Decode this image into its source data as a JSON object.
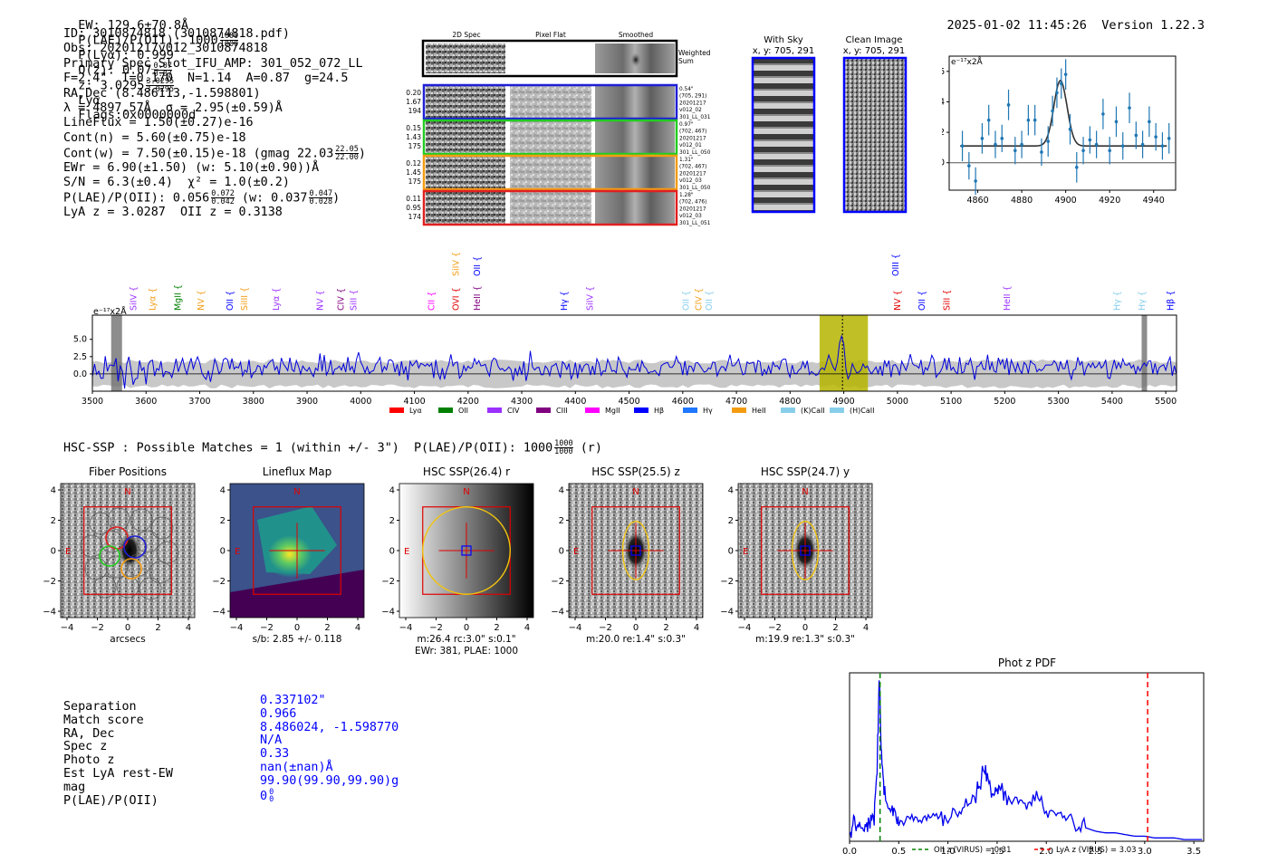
{
  "header": {
    "ew_text": "EW: 129.6±70.8Å",
    "plae_text": "P(LAE)/P(OII): 1000",
    "plae_hi": "1000",
    "plae_lo": "1000",
    "plya_text": "P(Lyα): 0.999",
    "qz_text": "Q(z): 0.07",
    "qz_hi": "0.07",
    "qz_lo": "0.07",
    "z_text": "z: 3.0295",
    "z_hi": "3.0295",
    "z_lo": "3.0295",
    "lya_text": "Lyα",
    "flags_text": "Flags:0x0000000d",
    "timestamp": "2025-01-02 11:45:26",
    "version": "Version 1.22.3"
  },
  "info": {
    "id": "ID: 3010874818 (3010874818.pdf)",
    "obs": "Obs: 20201217v012_3010874818",
    "primary": "Primary Spec_Slot_IFU_AMP: 301_052_072_LL",
    "fwhm": "F=2.4\"  T=0.170  N=1.14  A=0.87  g=24.5",
    "radec": "RA,Dec (8.486113,-1.598801)",
    "lambda": "λ = 4897.57Å  σ = 2.95(±0.59)Å",
    "lineflux": "LineFlux = 1.50(±0.27)e-16",
    "contn": "Cont(n) = 5.60(±0.75)e-18",
    "contw": "Cont(w) = 7.50(±0.15)e-18 (gmag 22.03",
    "contw_hi": "22.05",
    "contw_lo": "22.00",
    "contw_close": ")",
    "ewr": "EWr = 6.90(±1.50) (w: 5.10(±0.90))Å",
    "sn": "S/N = 6.3(±0.4)  χ² = 1.0(±0.2)",
    "plae": "P(LAE)/P(OII): 0.056",
    "plae_hi": "0.072",
    "plae_lo": "0.042",
    "plae_w": "(w: 0.037",
    "plae_w_hi": "0.047",
    "plae_w_lo": "0.028",
    "plae_w_close": ")",
    "lyaz": "LyA z = 3.0287  OII z = 0.3138"
  },
  "cutouts": {
    "col_2d": "2D Spec",
    "col_flat": "Pixel Flat",
    "col_smooth": "Smoothed",
    "weighted_sum": [
      "Weighted",
      "Sum"
    ],
    "rows": [
      {
        "left": [
          "0.20",
          "1.67",
          "194"
        ],
        "right": [
          "0.54\"",
          "(705, 291)",
          "20201217",
          "v012_02",
          "301_LL_031"
        ],
        "color": "#1f1fd6"
      },
      {
        "left": [
          "0.15",
          "1.43",
          "175"
        ],
        "right": [
          "0.97\"",
          "(702, 467)",
          "20201217",
          "v012_01",
          "301_LL_050"
        ],
        "color": "#22cc22"
      },
      {
        "left": [
          "0.12",
          "1.45",
          "175"
        ],
        "right": [
          "1.31\"",
          "(702, 467)",
          "20201217",
          "v012_03",
          "301_LL_050"
        ],
        "color": "#f39c12"
      },
      {
        "left": [
          "0.11",
          "0.95",
          "174"
        ],
        "right": [
          "1.28\"",
          "(702, 476)",
          "20201217",
          "v012_03",
          "301_LL_051"
        ],
        "color": "#e02020"
      }
    ],
    "with_sky": "With Sky",
    "with_sky_xy": "x, y: 705, 291",
    "clean": "Clean Image",
    "clean_xy": "x, y: 705, 291"
  },
  "zoom_plot": {
    "unit": "e⁻¹⁷x2Å",
    "x_ticks": [
      "4860",
      "4880",
      "4900",
      "4920",
      "4940"
    ],
    "y_ticks": [
      "0",
      "2",
      "4",
      "6"
    ]
  },
  "spectrum": {
    "unit": "e⁻¹⁷x2Å",
    "x_ticks": [
      "3500",
      "3600",
      "3700",
      "3800",
      "3900",
      "4000",
      "4100",
      "4200",
      "4300",
      "4400",
      "4500",
      "4600",
      "4700",
      "4800",
      "4900",
      "5000",
      "5100",
      "5200",
      "5300",
      "5400",
      "5500"
    ],
    "y_ticks": [
      "5.0",
      "2.5",
      "0.0"
    ],
    "line_labels": [
      {
        "t": "SiIV",
        "x": 3578,
        "row": 0,
        "c": "#9b30ff"
      },
      {
        "t": "Lyα",
        "x": 3613,
        "row": 0,
        "c": "#f39c12"
      },
      {
        "t": "MgII",
        "x": 3660,
        "row": 0,
        "c": "#008000"
      },
      {
        "t": "NV",
        "x": 3703,
        "row": 0,
        "c": "#f39c12"
      },
      {
        "t": "OII",
        "x": 3757,
        "row": 0,
        "c": "#0000ff"
      },
      {
        "t": "SiIII",
        "x": 3784,
        "row": 0,
        "c": "#f39c12"
      },
      {
        "t": "Lyα",
        "x": 3843,
        "row": 0,
        "c": "#9b30ff"
      },
      {
        "t": "NV",
        "x": 3925,
        "row": 0,
        "c": "#9b30ff"
      },
      {
        "t": "CIV",
        "x": 3964,
        "row": 0,
        "c": "#800080"
      },
      {
        "t": "SiII",
        "x": 3988,
        "row": 0,
        "c": "#9b30ff"
      },
      {
        "t": "CII",
        "x": 4133,
        "row": 0,
        "c": "#ff00ff"
      },
      {
        "t": "OVI",
        "x": 4178,
        "row": 0,
        "c": "#e00000"
      },
      {
        "t": "HeII",
        "x": 4218,
        "row": 0,
        "c": "#800080"
      },
      {
        "t": "SiIV",
        "x": 4178,
        "row": 1,
        "c": "#f39c12"
      },
      {
        "t": "OII",
        "x": 4218,
        "row": 1,
        "c": "#0000ff"
      },
      {
        "t": "Hγ",
        "x": 4380,
        "row": 0,
        "c": "#0000ff"
      },
      {
        "t": "SiIV",
        "x": 4428,
        "row": 0,
        "c": "#9b30ff"
      },
      {
        "t": "OII",
        "x": 4607,
        "row": 0,
        "c": "#87ceeb"
      },
      {
        "t": "CIV",
        "x": 4631,
        "row": 0,
        "c": "#f39c12"
      },
      {
        "t": "OII",
        "x": 4650,
        "row": 0,
        "c": "#87ceeb"
      },
      {
        "t": "NV",
        "x": 5001,
        "row": 0,
        "c": "#e00000"
      },
      {
        "t": "OII",
        "x": 5047,
        "row": 0,
        "c": "#0000ff"
      },
      {
        "t": "SiII",
        "x": 5093,
        "row": 0,
        "c": "#e00000"
      },
      {
        "t": "HeII",
        "x": 5205,
        "row": 0,
        "c": "#9b30ff"
      },
      {
        "t": "OIII",
        "x": 4998,
        "row": 1,
        "c": "#0000ff"
      },
      {
        "t": "Hγ",
        "x": 5410,
        "row": 0,
        "c": "#87ceeb"
      },
      {
        "t": "Hγ",
        "x": 5457,
        "row": 0,
        "c": "#87ceeb"
      },
      {
        "t": "Hβ",
        "x": 5528,
        "row": 0,
        "c": "#0000ff"
      }
    ],
    "legend": [
      {
        "t": "Lyα",
        "c": "#ff0000"
      },
      {
        "t": "OII",
        "c": "#008000"
      },
      {
        "t": "CIV",
        "c": "#9b30ff"
      },
      {
        "t": "CIII",
        "c": "#800080"
      },
      {
        "t": "MgII",
        "c": "#ff00ff"
      },
      {
        "t": "Hβ",
        "c": "#0000ff"
      },
      {
        "t": "Hγ",
        "c": "#1f77ff"
      },
      {
        "t": "HeII",
        "c": "#f39c12"
      },
      {
        "t": "(K)CaII",
        "c": "#87ceeb"
      },
      {
        "t": "(H)CaII",
        "c": "#87ceeb"
      }
    ]
  },
  "hsc": {
    "summary": "HSC-SSP : Possible Matches = 1 (within +/- 3\")  P(LAE)/P(OII): 1000",
    "summary_hi": "1000",
    "summary_lo": "1000",
    "summary_band": "(r)",
    "panels": [
      {
        "title": "Fiber Positions",
        "caption1": "arcsecs",
        "caption2": ""
      },
      {
        "title": "Lineflux Map",
        "caption1": "s/b: 2.85 +/- 0.118",
        "caption2": ""
      },
      {
        "title": "HSC SSP(26.4) r",
        "caption1": "m:26.4 rc:3.0\"  s:0.1\"",
        "caption2": "EWr: 381, PLAE: 1000"
      },
      {
        "title": "HSC SSP(25.5) z",
        "caption1": "m:20.0  re:1.4\"  s:0.3\"",
        "caption2": ""
      },
      {
        "title": "HSC SSP(24.7) y",
        "caption1": "m:19.9  re:1.3\"  s:0.3\"",
        "caption2": ""
      }
    ],
    "y_ticks": [
      "4",
      "2",
      "0",
      "−2",
      "−4"
    ],
    "x_ticks": [
      "−4",
      "−2",
      "0",
      "2",
      "4"
    ],
    "north": "N",
    "east": "E"
  },
  "match": {
    "labels": [
      "Separation",
      "Match score",
      "RA, Dec",
      "Spec z",
      "Photo z",
      "Est LyA rest-EW",
      "mag",
      "P(LAE)/P(OII)"
    ],
    "values": [
      "0.337102\"",
      "0.966",
      "8.486024, -1.598770",
      "N/A",
      "0.33",
      "nan(±nan)Å",
      "99.90(99.90,99.90)g",
      "0"
    ],
    "plae_hi": "0",
    "plae_lo": "0"
  },
  "photz": {
    "title": "Phot z PDF",
    "x_ticks": [
      "0.0",
      "0.5",
      "1.0",
      "1.5",
      "2.0",
      "2.5",
      "3.0",
      "3.5"
    ],
    "legend_oii": "OII z (VIRUS) = 0.31",
    "legend_lya": "LyA z (VIRUS) = 3.03"
  },
  "chart_data": [
    {
      "type": "scatter",
      "title": "",
      "xlabel": "",
      "ylabel": "e-17 x2Å",
      "xlim": [
        4847,
        4950
      ],
      "ylim": [
        -1.8,
        7.0
      ],
      "x": [
        4853,
        4856,
        4859,
        4862,
        4865,
        4868,
        4871,
        4874,
        4877,
        4880,
        4883,
        4886,
        4889,
        4892,
        4894,
        4896,
        4898,
        4900,
        4902,
        4905,
        4908,
        4911,
        4914,
        4917,
        4920,
        4923,
        4926,
        4929,
        4932,
        4935,
        4938,
        4941,
        4944,
        4947
      ],
      "y": [
        1.1,
        -0.2,
        -1.2,
        1.6,
        2.8,
        1.2,
        1.6,
        3.8,
        0.8,
        1.2,
        2.8,
        2.8,
        0.7,
        1.4,
        3.4,
        4.6,
        5.2,
        5.8,
        2.2,
        -0.3,
        0.8,
        1.5,
        1.2,
        3.2,
        0.8,
        2.7,
        1.1,
        3.6,
        1.8,
        1.2,
        2.7,
        1.7,
        1.1,
        1.6
      ],
      "yerr": [
        1.0,
        0.9,
        0.9,
        1.0,
        1.0,
        0.9,
        0.9,
        1.0,
        0.9,
        0.9,
        1.0,
        1.0,
        0.9,
        1.0,
        1.0,
        1.0,
        1.0,
        1.0,
        1.0,
        1.0,
        0.9,
        0.9,
        0.9,
        1.0,
        0.9,
        1.0,
        0.9,
        1.0,
        0.9,
        0.9,
        1.0,
        0.9,
        0.9,
        1.0
      ],
      "model": {
        "continuum": 1.1,
        "peak_amp": 4.3,
        "center": 4897.6,
        "sigma": 3.0,
        "xrange": [
          4852,
          4946
        ]
      }
    },
    {
      "type": "line",
      "title": "",
      "xlabel": "wavelength (Å)",
      "ylabel": "e-17 x2Å",
      "xlim": [
        3500,
        5520
      ],
      "ylim": [
        -2.5,
        8.5
      ],
      "grey_band_level": 1.5,
      "highlight_span": [
        4855,
        4945
      ],
      "highlight_center": 4897.6,
      "series": [
        {
          "name": "spectrum",
          "noise_sigma": 1.2,
          "mean": 1.0
        }
      ]
    },
    {
      "type": "line",
      "title": "Phot z PDF",
      "xlabel": "z",
      "ylabel": "",
      "xlim": [
        0.0,
        3.6
      ],
      "ylim": [
        0,
        1.0
      ],
      "series": [
        {
          "name": "PDF",
          "x": [
            0.0,
            0.05,
            0.1,
            0.15,
            0.2,
            0.25,
            0.28,
            0.3,
            0.31,
            0.32,
            0.35,
            0.4,
            0.45,
            0.5,
            0.6,
            0.7,
            0.8,
            0.9,
            1.0,
            1.1,
            1.2,
            1.3,
            1.35,
            1.4,
            1.45,
            1.5,
            1.55,
            1.6,
            1.7,
            1.8,
            1.9,
            2.0,
            2.1,
            2.2,
            2.3,
            2.4,
            2.5,
            2.6,
            2.7,
            2.8,
            2.9,
            3.0,
            3.1,
            3.2,
            3.3,
            3.4,
            3.5,
            3.6
          ],
          "y": [
            0.05,
            0.12,
            0.08,
            0.1,
            0.09,
            0.15,
            0.45,
            0.95,
            0.85,
            0.55,
            0.3,
            0.18,
            0.15,
            0.12,
            0.14,
            0.12,
            0.16,
            0.15,
            0.14,
            0.18,
            0.22,
            0.3,
            0.4,
            0.38,
            0.28,
            0.32,
            0.3,
            0.24,
            0.26,
            0.22,
            0.28,
            0.18,
            0.15,
            0.16,
            0.08,
            0.08,
            0.06,
            0.05,
            0.05,
            0.04,
            0.03,
            0.03,
            0.02,
            0.02,
            0.02,
            0.01,
            0.01,
            0.01
          ]
        }
      ],
      "vlines": [
        {
          "x": 0.31,
          "name": "OII z (VIRUS) = 0.31",
          "color": "#008000"
        },
        {
          "x": 3.03,
          "name": "LyA z (VIRUS) = 3.03",
          "color": "#ff0000"
        }
      ]
    }
  ]
}
